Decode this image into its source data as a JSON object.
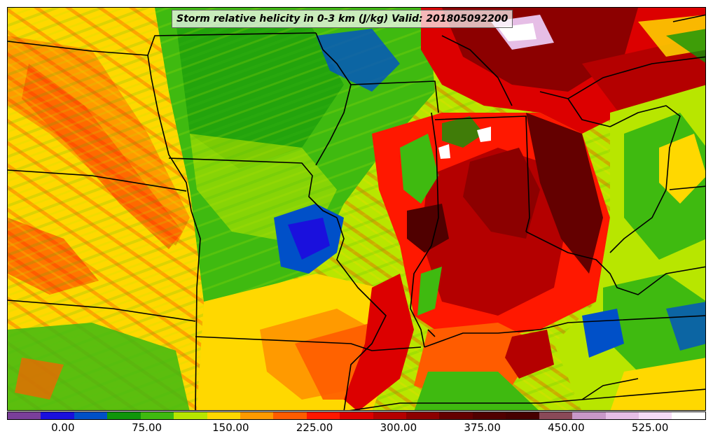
{
  "title": "Storm relative helicity in 0-3 km (J/kg) Valid: 201805092200",
  "colorbar": {
    "colors": [
      "#7a3f9a",
      "#1a10dd",
      "#0050c8",
      "#10960a",
      "#3fba10",
      "#b8e600",
      "#ffd800",
      "#ff9a00",
      "#ff5c00",
      "#ff1800",
      "#dc0000",
      "#b40000",
      "#8c0000",
      "#640000",
      "#500000",
      "#460000",
      "#8a4a58",
      "#c898c8",
      "#e6bee6",
      "#f6dcf6",
      "#ffffff"
    ],
    "ticks": [
      {
        "label": "0.00",
        "value": 0
      },
      {
        "label": "75.00",
        "value": 75
      },
      {
        "label": "150.00",
        "value": 150
      },
      {
        "label": "225.00",
        "value": 225
      },
      {
        "label": "300.00",
        "value": 300
      },
      {
        "label": "375.00",
        "value": 375
      },
      {
        "label": "450.00",
        "value": 450
      },
      {
        "label": "525.00",
        "value": 525
      }
    ],
    "min": -50,
    "max": 575
  }
}
